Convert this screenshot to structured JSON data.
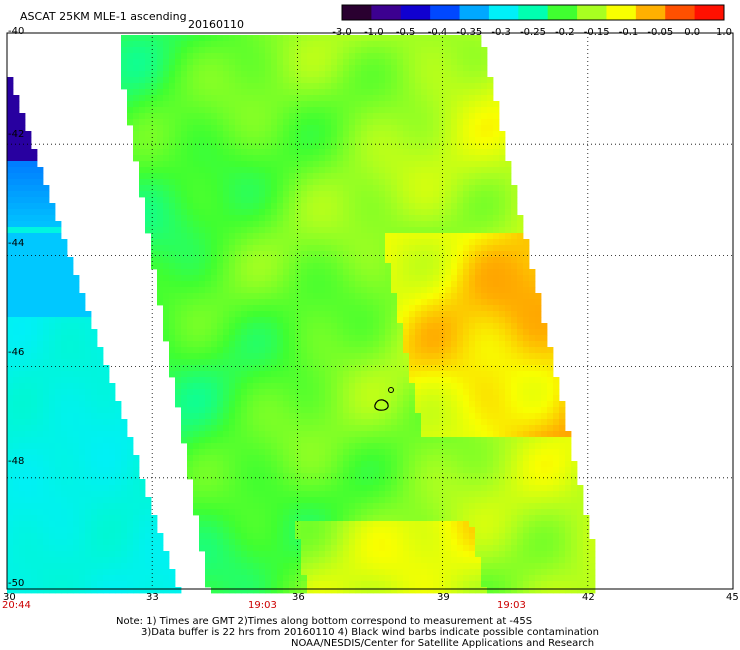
{
  "header": {
    "title": "ASCAT 25KM MLE-1 ascending",
    "date": "20160110"
  },
  "colorbar": {
    "labels": [
      "-3.0",
      "-1.0",
      "-0.5",
      "-0.4",
      "-0.35",
      "-0.3",
      "-0.25",
      "-0.2",
      "-0.15",
      "-0.1",
      "-0.05",
      "0.0",
      "1.0"
    ],
    "colors": [
      "#2a0030",
      "#3c0090",
      "#1000d0",
      "#0048ff",
      "#00a8ff",
      "#00f0f8",
      "#00ffb0",
      "#40ff30",
      "#a8ff20",
      "#f8ff00",
      "#ffb000",
      "#ff5000",
      "#ff1000"
    ]
  },
  "chart_data": {
    "type": "heatmap",
    "title": "ASCAT 25KM MLE-1 ascending",
    "x_ticks": [
      "30",
      "33",
      "36",
      "39",
      "42",
      "45"
    ],
    "y_ticks": [
      "-40",
      "-42",
      "-44",
      "-46",
      "-48",
      "-50"
    ],
    "xlim": [
      30,
      45
    ],
    "ylim": [
      -50,
      -40
    ],
    "grid": true,
    "times": [
      {
        "lon": 30,
        "label": "20:44"
      },
      {
        "lon": 36,
        "label": "19:03"
      },
      {
        "lon": 42,
        "label": "19:03"
      }
    ]
  },
  "notes": {
    "line1": "Note: 1) Times are GMT 2)Times along bottom correspond to measurement at -45S",
    "line2": "3)Data buffer is 22 hrs from 20160110 4) Black wind barbs indicate possible contamination",
    "line3": "NOAA/NESDIS/Center for Satellite Applications and Research"
  }
}
